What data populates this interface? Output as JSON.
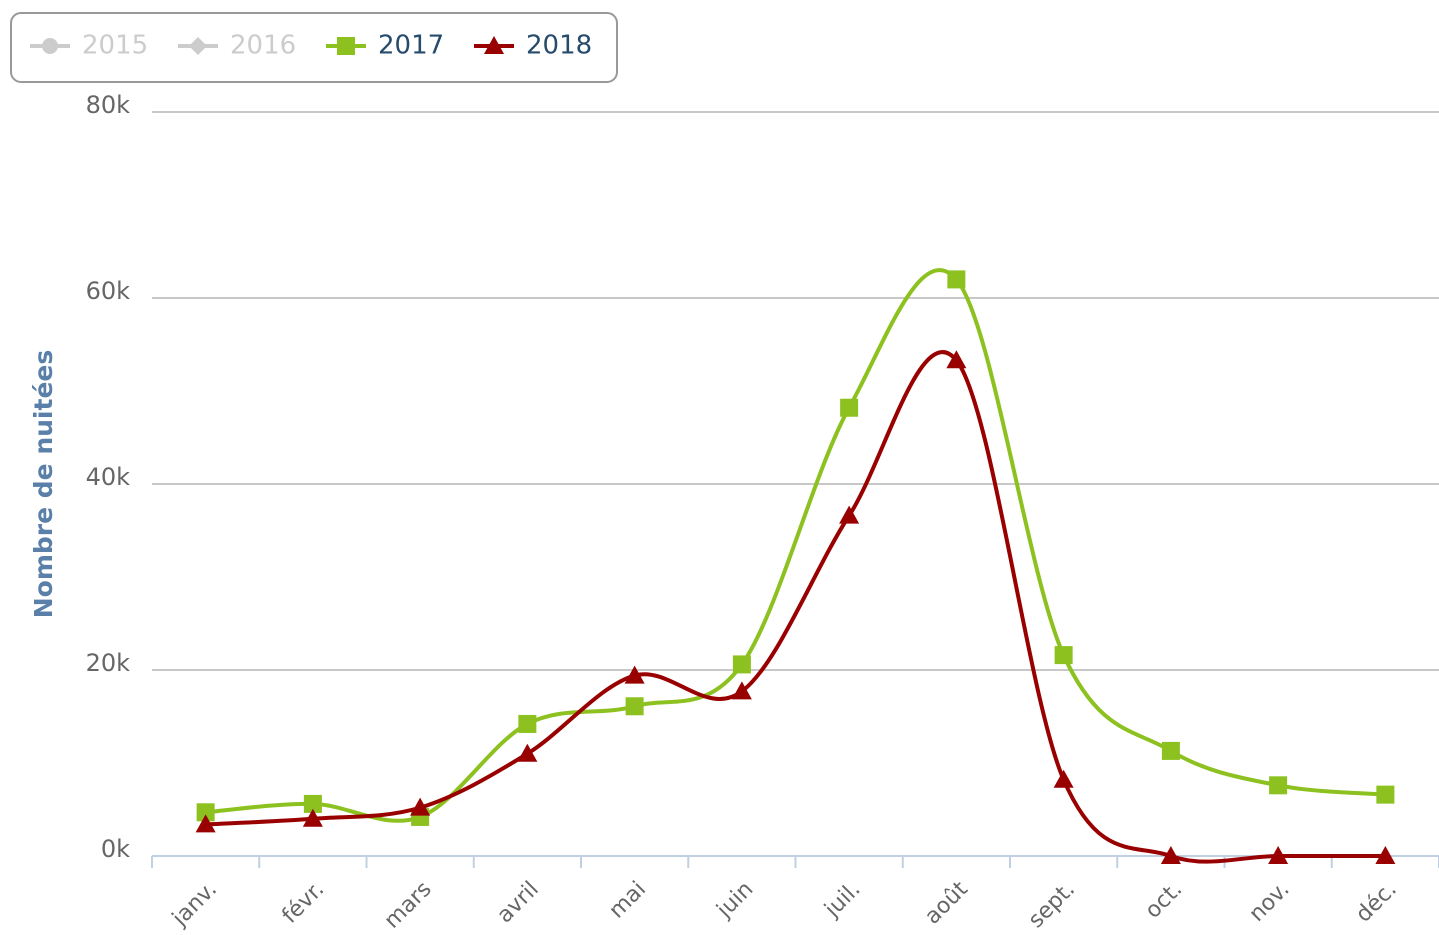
{
  "chart_data": {
    "type": "spline",
    "y_axis_label": "Nombre de nuitées",
    "categories": [
      "janv.",
      "févr.",
      "mars",
      "avril",
      "mai",
      "juin",
      "juil.",
      "août",
      "sept.",
      "oct.",
      "nov.",
      "déc."
    ],
    "ylim": [
      0,
      80000
    ],
    "yticks": [
      {
        "value": 0,
        "label": "0k"
      },
      {
        "value": 20000,
        "label": "20k"
      },
      {
        "value": 40000,
        "label": "40k"
      },
      {
        "value": 60000,
        "label": "60k"
      },
      {
        "value": 80000,
        "label": "80k"
      }
    ],
    "grid": true,
    "legend": "top-left",
    "series": [
      {
        "name": "2015",
        "color": "#cccccc",
        "marker": "circle",
        "visible": false,
        "values": [
          null,
          null,
          null,
          null,
          null,
          null,
          null,
          null,
          null,
          null,
          null,
          null
        ]
      },
      {
        "name": "2016",
        "color": "#cccccc",
        "marker": "diamond",
        "visible": false,
        "values": [
          null,
          null,
          null,
          null,
          null,
          null,
          null,
          null,
          null,
          null,
          null,
          null
        ]
      },
      {
        "name": "2017",
        "color": "#8cc11f",
        "marker": "square",
        "visible": true,
        "values": [
          4700,
          5600,
          4200,
          14200,
          16100,
          20600,
          48200,
          62000,
          21600,
          11300,
          7600,
          6600
        ]
      },
      {
        "name": "2018",
        "color": "#990000",
        "marker": "triangle",
        "visible": true,
        "values": [
          3400,
          4000,
          5200,
          11000,
          19400,
          17700,
          36600,
          53300,
          8200,
          0,
          0,
          0
        ]
      }
    ]
  }
}
